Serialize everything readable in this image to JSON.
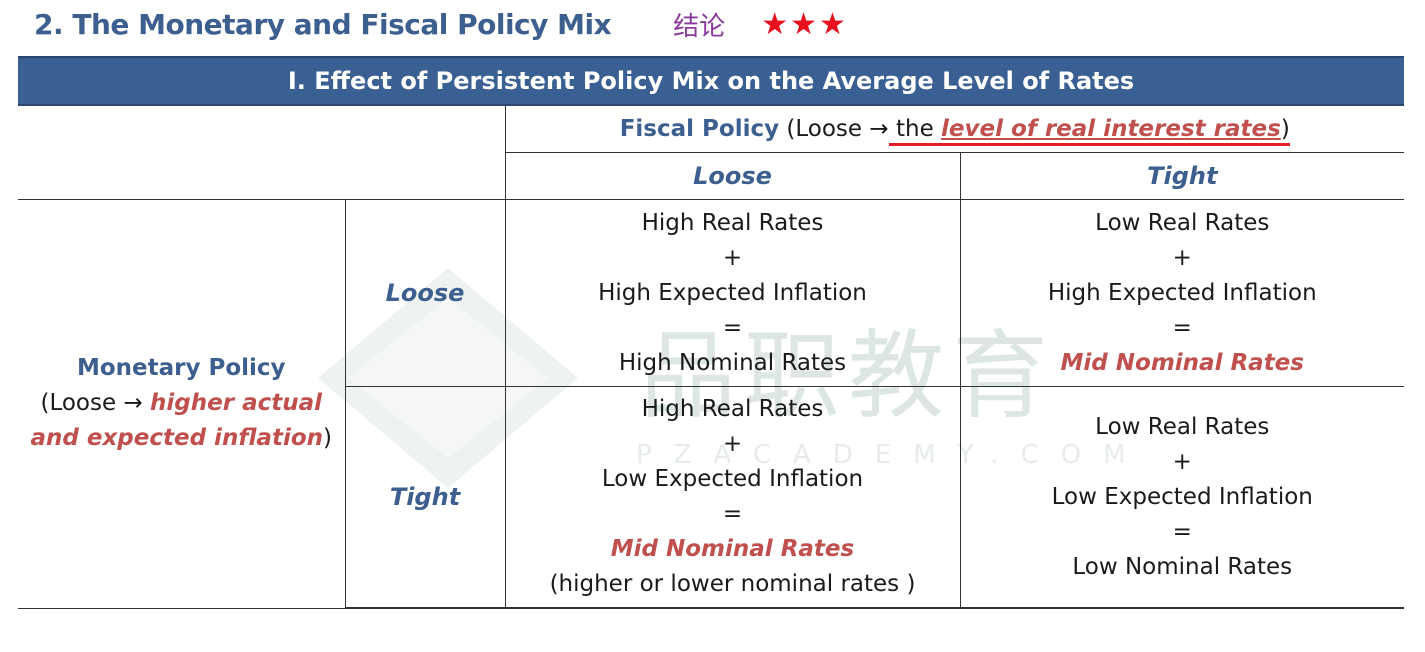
{
  "header": {
    "title": "2. The Monetary and Fiscal Policy Mix",
    "conclusion": "结论",
    "stars": "★★★"
  },
  "watermark": {
    "text": "品职教育",
    "sub": "PZACADEMY.COM"
  },
  "table": {
    "banner": "I. Effect of Persistent Policy Mix on the Average Level of Rates",
    "fiscal": {
      "label": "Fiscal Policy",
      "open": " (Loose ",
      "arrow": "→",
      "the": " the ",
      "effect": "level of real interest rates",
      "close": ")"
    },
    "columns": [
      "Loose",
      "Tight"
    ],
    "monetary": {
      "label": "Monetary Policy",
      "open": "(Loose ",
      "arrow": "→",
      "effect_line1": "higher actual",
      "effect_line2": "and expected inflation",
      "close": ")"
    },
    "rows": [
      {
        "label": "Loose",
        "cells": [
          {
            "l1": "High Real Rates",
            "l2": "+",
            "l3": "High Expected Inflation",
            "l4": "=",
            "l5": "High Nominal Rates"
          },
          {
            "l1": "Low Real Rates",
            "l2": "+",
            "l3": "High Expected Inflation",
            "l4": "=",
            "l5": "Mid Nominal Rates"
          }
        ]
      },
      {
        "label": "Tight",
        "cells": [
          {
            "l1": "High Real Rates",
            "l2": "+",
            "l3": "Low Expected Inflation",
            "l4": "=",
            "l5": "Mid Nominal Rates",
            "l6": "(higher or lower nominal rates )"
          },
          {
            "l1": "Low Real Rates",
            "l2": "+",
            "l3": "Low Expected Inflation",
            "l4": "=",
            "l5": "Low Nominal Rates"
          }
        ]
      }
    ]
  },
  "colors": {
    "banner": "#3a5f92",
    "heading_blue": "#3d5f8f",
    "accent_red": "#c0504d",
    "underline_red": "#e41e26",
    "conclusion_purple": "#8b3a9c",
    "star_red": "#e8101c"
  }
}
